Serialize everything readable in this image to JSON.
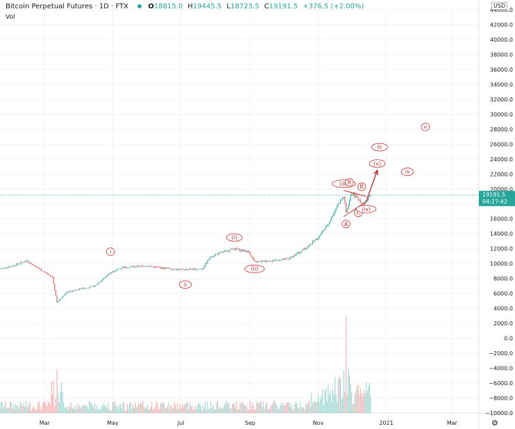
{
  "header": {
    "title": "Bitcoin Perpetual Futures · 1D · FTX",
    "open_label": "O",
    "open": "18815.0",
    "high_label": "H",
    "high": "19445.5",
    "low_label": "L",
    "low": "18723.5",
    "close_label": "C",
    "close": "19191.5",
    "change": "+376.5 (+2.00%)",
    "volume_label": "Vol"
  },
  "price_scale": {
    "currency": "USD",
    "last_price": "19191.5",
    "countdown": "04:27:42",
    "last_price_color": "#26a69a"
  },
  "colors": {
    "up": "#26a69a",
    "down": "#ef5350",
    "wave": "#c62828",
    "grid": "#f0f3fa"
  },
  "chart_data": {
    "type": "candlestick",
    "y_axis": {
      "min": -10000,
      "max": 44000,
      "scale": "linear",
      "ticks": [
        "44000.0",
        "42000.0",
        "40000.0",
        "38000.0",
        "36000.0",
        "34000.0",
        "32000.0",
        "30000.0",
        "28000.0",
        "26000.0",
        "24000.0",
        "22000.0",
        "20000.0",
        "18000.0",
        "16000.0",
        "14000.0",
        "12000.0",
        "10000.0",
        "8000.0",
        "6000.0",
        "4000.0",
        "2000.0",
        "0.0",
        "−2000.0",
        "−4000.0",
        "−6000.0",
        "−8000.0",
        "−10000.0"
      ],
      "tick_values": [
        44000,
        42000,
        40000,
        38000,
        36000,
        34000,
        32000,
        30000,
        28000,
        26000,
        24000,
        22000,
        20000,
        18000,
        16000,
        14000,
        12000,
        10000,
        8000,
        6000,
        4000,
        2000,
        0,
        -2000,
        -4000,
        -6000,
        -8000,
        -10000
      ]
    },
    "x_axis": {
      "start": "2020-01-21",
      "end": "2021-03-25",
      "tick_labels": [
        "Mar",
        "May",
        "Jul",
        "Sep",
        "Nov",
        "2021",
        "Mar"
      ],
      "tick_dates": [
        "2020-03-01",
        "2020-05-01",
        "2020-07-01",
        "2020-09-01",
        "2020-11-01",
        "2021-01-01",
        "2021-03-01"
      ]
    },
    "price_series": {
      "name": "BTC-PERP",
      "points": [
        [
          "2020-01-21",
          9300
        ],
        [
          "2020-02-01",
          9700
        ],
        [
          "2020-02-14",
          10400
        ],
        [
          "2020-02-25",
          9300
        ],
        [
          "2020-03-08",
          8200
        ],
        [
          "2020-03-12",
          4800
        ],
        [
          "2020-03-20",
          6100
        ],
        [
          "2020-04-01",
          6600
        ],
        [
          "2020-04-15",
          7000
        ],
        [
          "2020-04-29",
          8800
        ],
        [
          "2020-05-10",
          9500
        ],
        [
          "2020-05-20",
          9600
        ],
        [
          "2020-06-01",
          9700
        ],
        [
          "2020-06-15",
          9400
        ],
        [
          "2020-07-01",
          9200
        ],
        [
          "2020-07-20",
          9300
        ],
        [
          "2020-07-28",
          11000
        ],
        [
          "2020-08-17",
          12000
        ],
        [
          "2020-08-31",
          11600
        ],
        [
          "2020-09-05",
          10200
        ],
        [
          "2020-09-20",
          10400
        ],
        [
          "2020-10-05",
          10600
        ],
        [
          "2020-10-20",
          12000
        ],
        [
          "2020-11-01",
          13500
        ],
        [
          "2020-11-10",
          15300
        ],
        [
          "2020-11-18",
          17800
        ],
        [
          "2020-11-24",
          19000
        ],
        [
          "2020-11-26",
          16800
        ],
        [
          "2020-12-01",
          19500
        ],
        [
          "2020-12-08",
          18500
        ],
        [
          "2020-12-12",
          18000
        ],
        [
          "2020-12-18",
          19191.5
        ]
      ]
    },
    "volume_series": {
      "name": "Vol",
      "peak_date": "2020-11-26"
    },
    "wave_labels": [
      {
        "text": "i",
        "date": "2020-04-29",
        "price": 11600
      },
      {
        "text": "ii",
        "date": "2020-07-05",
        "price": 7200
      },
      {
        "text": "(i)",
        "date": "2020-08-18",
        "price": 13500
      },
      {
        "text": "(ii)",
        "date": "2020-09-05",
        "price": 9300
      },
      {
        "text": "(iii)",
        "date": "2020-11-24",
        "price": 20700
      },
      {
        "text": "B",
        "date": "2020-11-29",
        "price": 20900
      },
      {
        "text": "B",
        "date": "2020-12-10",
        "price": 20300
      },
      {
        "text": "A",
        "date": "2020-11-26",
        "price": 15300
      },
      {
        "text": "C",
        "date": "2020-12-07",
        "price": 16800
      },
      {
        "text": "(iv)",
        "date": "2020-12-14",
        "price": 17300
      },
      {
        "text": "(v)",
        "date": "2020-12-24",
        "price": 23400
      },
      {
        "text": "iii",
        "date": "2020-12-26",
        "price": 25600
      },
      {
        "text": "iv",
        "date": "2021-01-20",
        "price": 22300
      },
      {
        "text": "v",
        "date": "2021-02-05",
        "price": 28300
      }
    ],
    "projection_arrow": {
      "from_date": "2020-12-14",
      "from_price": 18300,
      "to_date": "2020-12-24",
      "to_price": 22500
    },
    "triangle": [
      {
        "date": "2020-11-24",
        "price": 19800
      },
      {
        "date": "2020-12-14",
        "price": 19000
      },
      {
        "date": "2020-11-24",
        "price": 16300
      },
      {
        "date": "2020-12-14",
        "price": 18300
      }
    ],
    "last_price_line": 19191.5
  }
}
